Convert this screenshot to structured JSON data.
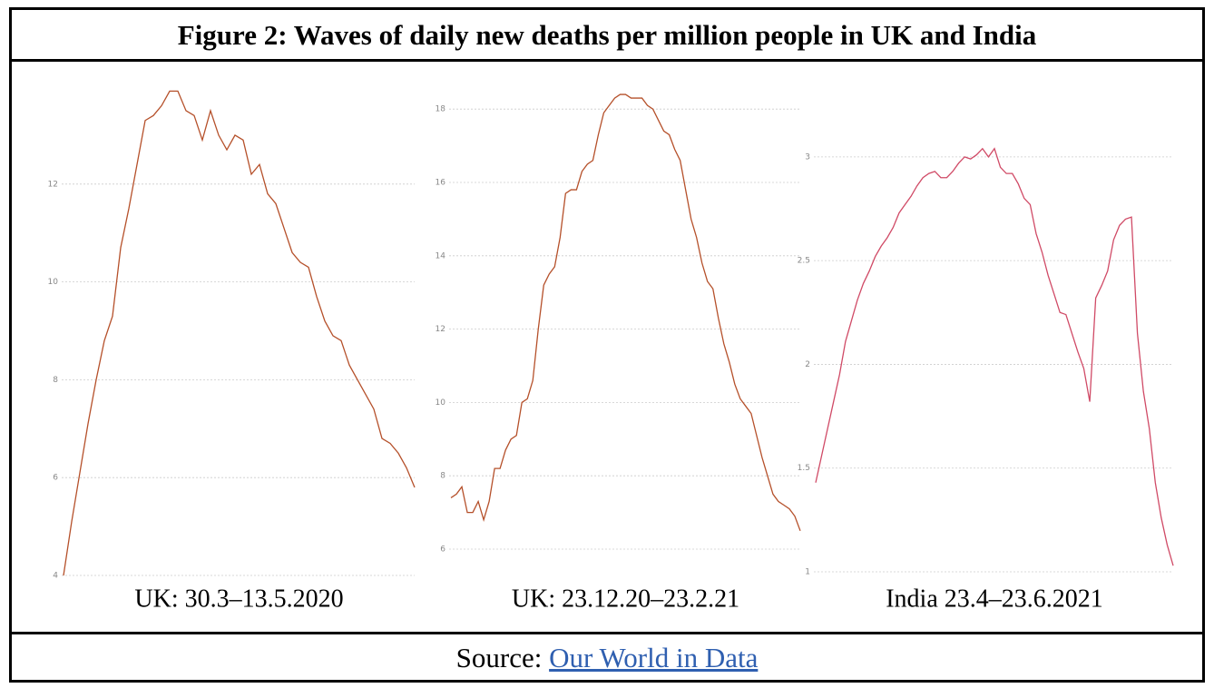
{
  "title": "Figure 2: Waves of daily new deaths per million people in UK and India",
  "source": {
    "prefix": "Source:",
    "link": "Our World in Data"
  },
  "chart_data": [
    {
      "type": "line",
      "caption": "UK: 30.3–13.5.2020",
      "color": "#b5502a",
      "grid": true,
      "ylim": [
        4,
        14
      ],
      "yticks": [
        4,
        6,
        8,
        10,
        12
      ],
      "values": [
        4.0,
        5.1,
        6.1,
        7.1,
        8.0,
        8.8,
        9.3,
        10.7,
        11.5,
        12.4,
        13.3,
        13.4,
        13.6,
        13.9,
        13.9,
        13.5,
        13.4,
        12.9,
        13.5,
        13.0,
        12.7,
        13.0,
        12.9,
        12.2,
        12.4,
        11.8,
        11.6,
        11.1,
        10.6,
        10.4,
        10.3,
        9.7,
        9.2,
        8.9,
        8.8,
        8.3,
        8.0,
        7.7,
        7.4,
        6.8,
        6.7,
        6.5,
        6.2,
        5.8
      ]
    },
    {
      "type": "line",
      "caption": "UK: 23.12.20–23.2.21",
      "color": "#b5502a",
      "grid": true,
      "ylim": [
        6,
        18.5
      ],
      "yticks": [
        6,
        8,
        10,
        12,
        14,
        16,
        18
      ],
      "values": [
        7.4,
        7.5,
        7.7,
        7.0,
        7.0,
        7.3,
        6.8,
        7.3,
        8.2,
        8.2,
        8.7,
        9.0,
        9.1,
        10.0,
        10.1,
        10.6,
        12.0,
        13.2,
        13.5,
        13.7,
        14.5,
        15.7,
        15.8,
        15.8,
        16.3,
        16.5,
        16.6,
        17.3,
        17.9,
        18.1,
        18.3,
        18.4,
        18.4,
        18.3,
        18.3,
        18.3,
        18.1,
        18.0,
        17.7,
        17.4,
        17.3,
        16.9,
        16.6,
        15.8,
        15.0,
        14.5,
        13.8,
        13.3,
        13.1,
        12.3,
        11.6,
        11.1,
        10.5,
        10.1,
        9.9,
        9.7,
        9.1,
        8.5,
        8.0,
        7.5,
        7.3,
        7.2,
        7.1,
        6.9,
        6.5
      ]
    },
    {
      "type": "line",
      "caption": "India 23.4–23.6.2021",
      "color": "#d04a66",
      "grid": true,
      "ylim": [
        1,
        3.1
      ],
      "yticks": [
        1,
        1.5,
        2,
        2.5,
        3
      ],
      "values": [
        1.43,
        1.56,
        1.69,
        1.82,
        1.95,
        2.11,
        2.21,
        2.31,
        2.39,
        2.45,
        2.52,
        2.57,
        2.61,
        2.66,
        2.73,
        2.77,
        2.81,
        2.86,
        2.9,
        2.92,
        2.93,
        2.9,
        2.9,
        2.93,
        2.97,
        3.0,
        2.99,
        3.01,
        3.04,
        3.0,
        3.04,
        2.95,
        2.92,
        2.92,
        2.87,
        2.8,
        2.77,
        2.63,
        2.54,
        2.43,
        2.34,
        2.25,
        2.24,
        2.15,
        2.06,
        1.98,
        1.82,
        2.32,
        2.38,
        2.45,
        2.6,
        2.67,
        2.7,
        2.71,
        2.15,
        1.87,
        1.69,
        1.43,
        1.26,
        1.13,
        1.03
      ]
    }
  ]
}
